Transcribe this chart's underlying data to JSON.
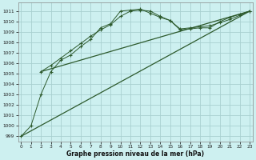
{
  "xlabel": "Graphe pression niveau de la mer (hPa)",
  "bg_color": "#cdf0f0",
  "grid_color": "#a8d0d0",
  "line_color": "#2d5a2d",
  "ylim": [
    998.5,
    1011.8
  ],
  "xlim": [
    -0.3,
    23.3
  ],
  "yticks": [
    999,
    1000,
    1001,
    1002,
    1003,
    1004,
    1005,
    1006,
    1007,
    1008,
    1009,
    1010,
    1011
  ],
  "xticks": [
    0,
    1,
    2,
    3,
    4,
    5,
    6,
    7,
    8,
    9,
    10,
    11,
    12,
    13,
    14,
    15,
    16,
    17,
    18,
    19,
    20,
    21,
    22,
    23
  ],
  "series1_x": [
    0,
    1,
    2,
    3,
    4,
    5,
    6,
    7,
    8,
    9,
    10,
    11,
    12,
    13,
    14,
    15,
    16,
    17,
    18,
    19,
    20,
    21,
    22,
    23
  ],
  "series1_y": [
    999.0,
    1000.0,
    1003.0,
    1005.2,
    1006.3,
    1006.8,
    1007.6,
    1008.3,
    1009.4,
    1009.8,
    1011.0,
    1011.1,
    1011.2,
    1010.8,
    1010.4,
    1010.1,
    1009.2,
    1009.3,
    1009.4,
    1009.4,
    1010.0,
    1010.4,
    1010.7,
    1011.0
  ],
  "series2_x": [
    2,
    3,
    4,
    5,
    6,
    7,
    8,
    9,
    10,
    11,
    12,
    13,
    14,
    15,
    16,
    17,
    18,
    19,
    20,
    21,
    22,
    23
  ],
  "series2_y": [
    1005.2,
    1005.8,
    1006.5,
    1007.2,
    1007.9,
    1008.6,
    1009.2,
    1009.7,
    1010.5,
    1011.0,
    1011.1,
    1011.0,
    1010.5,
    1010.1,
    1009.3,
    1009.4,
    1009.5,
    1009.6,
    1009.9,
    1010.2,
    1010.6,
    1011.0
  ],
  "series3_x": [
    0,
    23
  ],
  "series3_y": [
    999.0,
    1011.0
  ],
  "series4_x": [
    2,
    23
  ],
  "series4_y": [
    1005.2,
    1011.0
  ]
}
